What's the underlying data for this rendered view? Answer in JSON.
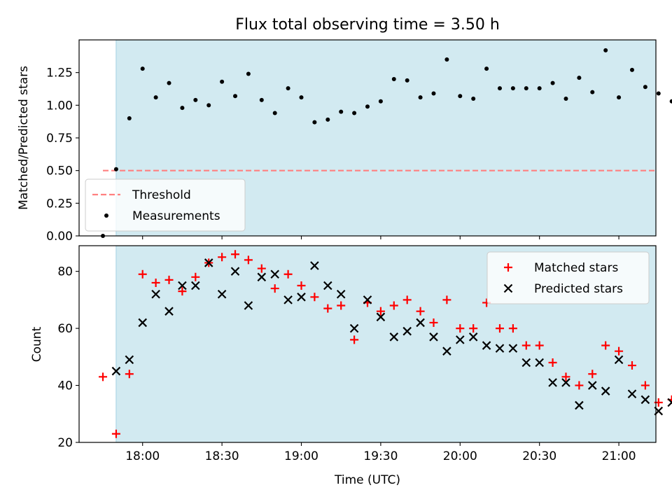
{
  "figure": {
    "title": "Flux total observing time = 3.50 h"
  },
  "chart_data": [
    {
      "type": "scatter",
      "ylabel": "Matched/Predicted stars",
      "xlabel": "",
      "xlim": [
        "17:36",
        "21:14"
      ],
      "ylim": [
        0.0,
        1.5
      ],
      "yticks": [
        "0.00",
        "0.25",
        "0.50",
        "0.75",
        "1.00",
        "1.25"
      ],
      "observing_span": [
        "17:50",
        "21:20"
      ],
      "threshold": {
        "name": "Threshold",
        "value": 0.5,
        "color": "#ff8080",
        "style": "dashed",
        "x_range": [
          "17:45",
          "21:20"
        ]
      },
      "legend_position": "lower-left",
      "series": [
        {
          "name": "Measurements",
          "color": "#000000",
          "marker": "dot",
          "points": [
            [
              "17:45",
              0.0
            ],
            [
              "17:50",
              0.51
            ],
            [
              "17:55",
              0.9
            ],
            [
              "18:00",
              1.28
            ],
            [
              "18:05",
              1.06
            ],
            [
              "18:10",
              1.17
            ],
            [
              "18:15",
              0.98
            ],
            [
              "18:20",
              1.04
            ],
            [
              "18:25",
              1.0
            ],
            [
              "18:30",
              1.18
            ],
            [
              "18:35",
              1.07
            ],
            [
              "18:40",
              1.24
            ],
            [
              "18:45",
              1.04
            ],
            [
              "18:50",
              0.94
            ],
            [
              "18:55",
              1.13
            ],
            [
              "19:00",
              1.06
            ],
            [
              "19:05",
              0.87
            ],
            [
              "19:10",
              0.89
            ],
            [
              "19:15",
              0.95
            ],
            [
              "19:20",
              0.94
            ],
            [
              "19:25",
              0.99
            ],
            [
              "19:30",
              1.03
            ],
            [
              "19:35",
              1.2
            ],
            [
              "19:40",
              1.19
            ],
            [
              "19:45",
              1.06
            ],
            [
              "19:50",
              1.09
            ],
            [
              "19:55",
              1.35
            ],
            [
              "20:00",
              1.07
            ],
            [
              "20:05",
              1.05
            ],
            [
              "20:10",
              1.28
            ],
            [
              "20:15",
              1.13
            ],
            [
              "20:20",
              1.13
            ],
            [
              "20:25",
              1.13
            ],
            [
              "20:30",
              1.13
            ],
            [
              "20:35",
              1.17
            ],
            [
              "20:40",
              1.05
            ],
            [
              "20:45",
              1.21
            ],
            [
              "20:50",
              1.1
            ],
            [
              "20:55",
              1.42
            ],
            [
              "21:00",
              1.06
            ],
            [
              "21:05",
              1.27
            ],
            [
              "21:10",
              1.14
            ],
            [
              "21:15",
              1.09
            ],
            [
              "21:20",
              1.03
            ]
          ]
        }
      ]
    },
    {
      "type": "scatter",
      "ylabel": "Count",
      "xlabel": "Time (UTC)",
      "xlim": [
        "17:36",
        "21:14"
      ],
      "ylim": [
        20,
        89
      ],
      "yticks": [
        "20",
        "40",
        "60",
        "80"
      ],
      "xticks": [
        "18:00",
        "18:30",
        "19:00",
        "19:30",
        "20:00",
        "20:30",
        "21:00"
      ],
      "observing_span": [
        "17:50",
        "21:20"
      ],
      "legend_position": "upper-right",
      "series": [
        {
          "name": "Matched stars",
          "color": "#ff0000",
          "marker": "plus",
          "points": [
            [
              "17:45",
              43
            ],
            [
              "17:50",
              23
            ],
            [
              "17:55",
              44
            ],
            [
              "18:00",
              79
            ],
            [
              "18:05",
              76
            ],
            [
              "18:10",
              77
            ],
            [
              "18:15",
              73
            ],
            [
              "18:20",
              78
            ],
            [
              "18:25",
              83
            ],
            [
              "18:30",
              85
            ],
            [
              "18:35",
              86
            ],
            [
              "18:40",
              84
            ],
            [
              "18:45",
              81
            ],
            [
              "18:50",
              74
            ],
            [
              "18:55",
              79
            ],
            [
              "19:00",
              75
            ],
            [
              "19:05",
              71
            ],
            [
              "19:10",
              67
            ],
            [
              "19:15",
              68
            ],
            [
              "19:20",
              56
            ],
            [
              "19:25",
              69
            ],
            [
              "19:30",
              66
            ],
            [
              "19:35",
              68
            ],
            [
              "19:40",
              70
            ],
            [
              "19:45",
              66
            ],
            [
              "19:50",
              62
            ],
            [
              "19:55",
              70
            ],
            [
              "20:00",
              60
            ],
            [
              "20:05",
              60
            ],
            [
              "20:10",
              69
            ],
            [
              "20:15",
              60
            ],
            [
              "20:20",
              60
            ],
            [
              "20:25",
              54
            ],
            [
              "20:30",
              54
            ],
            [
              "20:35",
              48
            ],
            [
              "20:40",
              43
            ],
            [
              "20:45",
              40
            ],
            [
              "20:50",
              44
            ],
            [
              "20:55",
              54
            ],
            [
              "21:00",
              52
            ],
            [
              "21:05",
              47
            ],
            [
              "21:10",
              40
            ],
            [
              "21:15",
              34
            ],
            [
              "21:20",
              35
            ]
          ]
        },
        {
          "name": "Predicted stars",
          "color": "#000000",
          "marker": "x",
          "points": [
            [
              "17:50",
              45
            ],
            [
              "17:55",
              49
            ],
            [
              "18:00",
              62
            ],
            [
              "18:05",
              72
            ],
            [
              "18:10",
              66
            ],
            [
              "18:15",
              75
            ],
            [
              "18:20",
              75
            ],
            [
              "18:25",
              83
            ],
            [
              "18:30",
              72
            ],
            [
              "18:35",
              80
            ],
            [
              "18:40",
              68
            ],
            [
              "18:45",
              78
            ],
            [
              "18:50",
              79
            ],
            [
              "18:55",
              70
            ],
            [
              "19:00",
              71
            ],
            [
              "19:05",
              82
            ],
            [
              "19:10",
              75
            ],
            [
              "19:15",
              72
            ],
            [
              "19:20",
              60
            ],
            [
              "19:25",
              70
            ],
            [
              "19:30",
              64
            ],
            [
              "19:35",
              57
            ],
            [
              "19:40",
              59
            ],
            [
              "19:45",
              62
            ],
            [
              "19:50",
              57
            ],
            [
              "19:55",
              52
            ],
            [
              "20:00",
              56
            ],
            [
              "20:05",
              57
            ],
            [
              "20:10",
              54
            ],
            [
              "20:15",
              53
            ],
            [
              "20:20",
              53
            ],
            [
              "20:25",
              48
            ],
            [
              "20:30",
              48
            ],
            [
              "20:35",
              41
            ],
            [
              "20:40",
              41
            ],
            [
              "20:45",
              33
            ],
            [
              "20:50",
              40
            ],
            [
              "20:55",
              38
            ],
            [
              "21:00",
              49
            ],
            [
              "21:05",
              37
            ],
            [
              "21:10",
              35
            ],
            [
              "21:15",
              31
            ],
            [
              "21:20",
              34
            ]
          ]
        }
      ]
    }
  ]
}
